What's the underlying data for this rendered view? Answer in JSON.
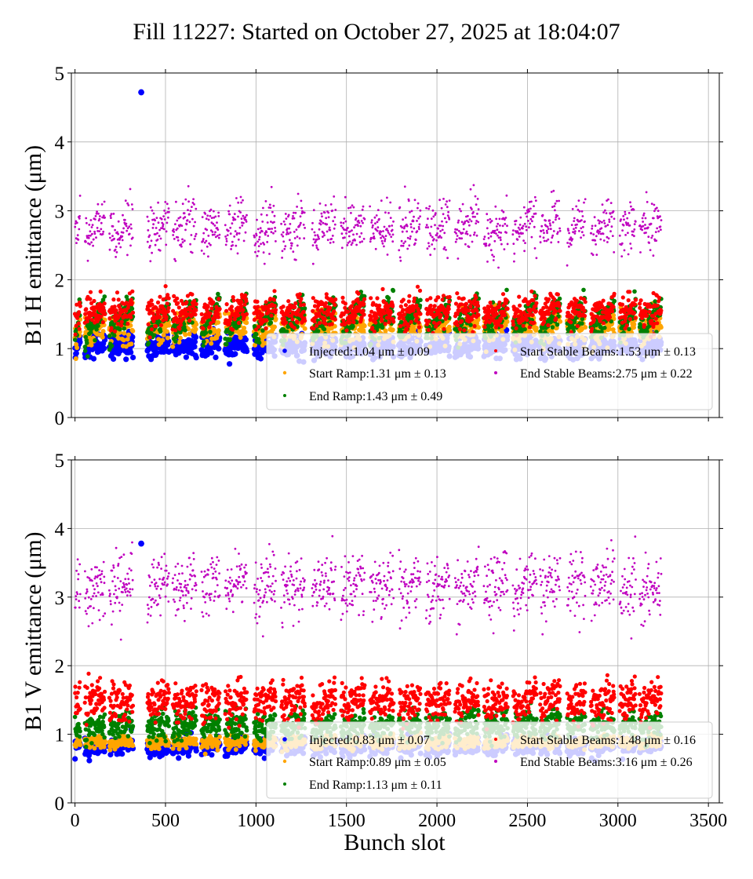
{
  "figure": {
    "title": "Fill 11227: Started on October 27, 2025 at 18:04:07",
    "xlabel": "Bunch slot"
  },
  "colors": {
    "Injected": "#0000ff",
    "Start Ramp": "#ffa500",
    "End Ramp": "#008000",
    "Start Stable Beams": "#ff0000",
    "End Stable Beams": "#bf00bf"
  },
  "chart_data": [
    {
      "type": "scatter",
      "xlabel": "Bunch slot",
      "ylabel": "B1 H emittance (μm)",
      "xlim": [
        -20,
        3560
      ],
      "ylim": [
        0,
        5
      ],
      "xticks": [
        0,
        500,
        1000,
        1500,
        2000,
        2500,
        3000,
        3500
      ],
      "yticks": [
        0,
        1,
        2,
        3,
        4,
        5
      ],
      "grid": true,
      "legend_position": "lower-right",
      "trains": [
        [
          0,
          30
        ],
        [
          55,
          165
        ],
        [
          190,
          320
        ],
        [
          400,
          520
        ],
        [
          540,
          670
        ],
        [
          700,
          800
        ],
        [
          830,
          950
        ],
        [
          990,
          1110
        ],
        [
          1140,
          1270
        ],
        [
          1310,
          1440
        ],
        [
          1470,
          1600
        ],
        [
          1630,
          1760
        ],
        [
          1790,
          1910
        ],
        [
          1940,
          2070
        ],
        [
          2100,
          2230
        ],
        [
          2260,
          2390
        ],
        [
          2420,
          2550
        ],
        [
          2570,
          2680
        ],
        [
          2720,
          2820
        ],
        [
          2850,
          2980
        ],
        [
          3010,
          3100
        ],
        [
          3120,
          3240
        ]
      ],
      "series": [
        {
          "name": "Injected",
          "legend": "Injected:1.04 μm ± 0.09",
          "mean": 1.04,
          "std": 0.09,
          "outlier": [
            366,
            4.72
          ]
        },
        {
          "name": "Start Ramp",
          "legend": "Start Ramp:1.31 μm ± 0.13",
          "mean": 1.31,
          "std": 0.13
        },
        {
          "name": "End Ramp",
          "legend": "End Ramp:1.43 μm ± 0.49",
          "mean": 1.43,
          "std": 0.49
        },
        {
          "name": "Start Stable Beams",
          "legend": "Start Stable Beams:1.53 μm ± 0.13",
          "mean": 1.53,
          "std": 0.13
        },
        {
          "name": "End Stable Beams",
          "legend": "End Stable Beams:2.75 μm ± 0.22",
          "mean": 2.75,
          "std": 0.22
        }
      ]
    },
    {
      "type": "scatter",
      "xlabel": "Bunch slot",
      "ylabel": "B1 V emittance (μm)",
      "xlim": [
        -20,
        3560
      ],
      "ylim": [
        0,
        5
      ],
      "xticks": [
        0,
        500,
        1000,
        1500,
        2000,
        2500,
        3000,
        3500
      ],
      "yticks": [
        0,
        1,
        2,
        3,
        4,
        5
      ],
      "grid": true,
      "legend_position": "lower-right",
      "trains": [
        [
          0,
          30
        ],
        [
          55,
          165
        ],
        [
          190,
          320
        ],
        [
          400,
          520
        ],
        [
          540,
          670
        ],
        [
          700,
          800
        ],
        [
          830,
          950
        ],
        [
          990,
          1110
        ],
        [
          1140,
          1270
        ],
        [
          1310,
          1440
        ],
        [
          1470,
          1600
        ],
        [
          1630,
          1760
        ],
        [
          1790,
          1910
        ],
        [
          1940,
          2070
        ],
        [
          2100,
          2230
        ],
        [
          2260,
          2390
        ],
        [
          2420,
          2550
        ],
        [
          2570,
          2680
        ],
        [
          2720,
          2820
        ],
        [
          2850,
          2980
        ],
        [
          3010,
          3100
        ],
        [
          3120,
          3240
        ]
      ],
      "series": [
        {
          "name": "Injected",
          "legend": "Injected:0.83 μm ± 0.07",
          "mean": 0.83,
          "std": 0.07,
          "outlier": [
            366,
            3.78
          ]
        },
        {
          "name": "Start Ramp",
          "legend": "Start Ramp:0.89 μm ± 0.05",
          "mean": 0.89,
          "std": 0.05
        },
        {
          "name": "End Ramp",
          "legend": "End Ramp:1.13 μm ± 0.11",
          "mean": 1.13,
          "std": 0.11
        },
        {
          "name": "Start Stable Beams",
          "legend": "Start Stable Beams:1.48 μm ± 0.16",
          "mean": 1.48,
          "std": 0.16
        },
        {
          "name": "End Stable Beams",
          "legend": "End Stable Beams:3.16 μm ± 0.26",
          "mean": 3.16,
          "std": 0.26
        }
      ]
    }
  ]
}
